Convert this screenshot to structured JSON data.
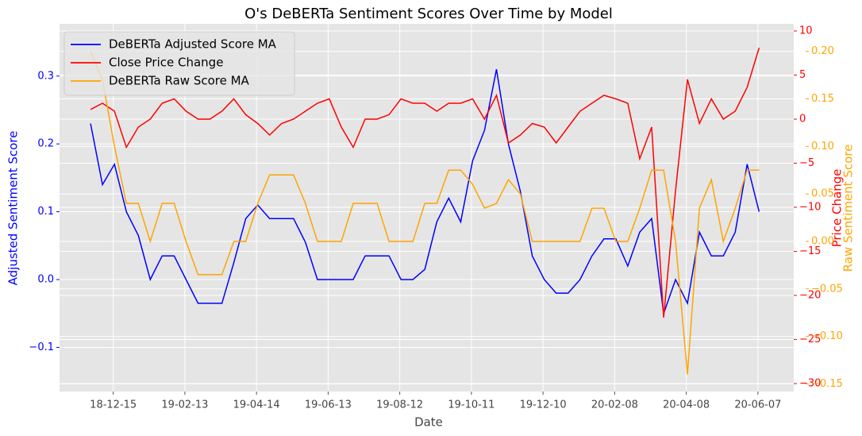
{
  "chart_data": {
    "type": "line",
    "title": "O's DeBERTa Sentiment Scores Over Time by Model",
    "xlabel": "Date",
    "ylabel": "Adjusted Sentiment Score",
    "y2label": "Price Change",
    "y3label": "Raw Sentiment Score",
    "x": [
      "18-11-26",
      "18-12-06",
      "18-12-16",
      "18-12-26",
      "19-01-05",
      "19-01-15",
      "19-01-25",
      "19-02-04",
      "19-02-14",
      "19-02-24",
      "19-03-06",
      "19-03-16",
      "19-03-26",
      "19-04-05",
      "19-04-15",
      "19-04-25",
      "19-05-05",
      "19-05-15",
      "19-05-25",
      "19-06-04",
      "19-06-14",
      "19-06-24",
      "19-07-04",
      "19-07-14",
      "19-07-24",
      "19-08-03",
      "19-08-13",
      "19-08-23",
      "19-09-02",
      "19-09-12",
      "19-09-22",
      "19-10-02",
      "19-10-12",
      "19-10-22",
      "19-11-01",
      "19-11-11",
      "19-11-21",
      "19-12-01",
      "19-12-11",
      "19-12-21",
      "19-12-31",
      "20-01-10",
      "20-01-20",
      "20-01-30",
      "20-02-09",
      "20-02-19",
      "20-02-29",
      "20-03-10",
      "20-03-20",
      "20-03-30",
      "20-04-09",
      "20-04-19",
      "20-04-29",
      "20-05-09",
      "20-05-19",
      "20-05-29",
      "20-06-08"
    ],
    "xlim": [
      "18-10-31",
      "20-07-07"
    ],
    "xticks": [
      "18-12-15",
      "19-02-13",
      "19-04-14",
      "19-06-13",
      "19-08-12",
      "19-10-11",
      "19-12-10",
      "20-02-08",
      "20-04-08",
      "20-06-07"
    ],
    "ylim": [
      -0.165,
      0.377
    ],
    "yticks": [
      {
        "value": -0.1,
        "label": "−0.1"
      },
      {
        "value": 0,
        "label": "0.0"
      },
      0.1,
      0.2,
      0.3
    ],
    "y2lim": [
      -30.9,
      10.81
    ],
    "y2ticks": [
      {
        "value": -30,
        "label": "−30"
      },
      {
        "value": -25,
        "label": "−25"
      },
      {
        "value": -20,
        "label": "−20"
      },
      {
        "value": -15,
        "label": "−15"
      },
      {
        "value": -10,
        "label": "−10"
      },
      {
        "value": -5,
        "label": "−5"
      },
      0,
      5,
      10
    ],
    "y3lim": [
      -0.158,
      0.229
    ],
    "y3ticks": [
      {
        "value": -0.15,
        "label": "−0.15"
      },
      {
        "value": -0.1,
        "label": "−0.10"
      },
      {
        "value": -0.05,
        "label": "−0.05"
      },
      {
        "value": 0,
        "label": "0.00"
      },
      {
        "value": 0.05,
        "label": "0.05"
      },
      {
        "value": 0.1,
        "label": "0.10"
      },
      {
        "value": 0.15,
        "label": "0.15"
      },
      {
        "value": 0.2,
        "label": "0.20"
      }
    ],
    "grid": true,
    "legend": "upper left",
    "series": [
      {
        "name": "DeBERTa Adjusted Score MA",
        "color": "#0000ff",
        "axis": "y",
        "values": [
          0.23,
          0.14,
          0.17,
          0.1,
          0.065,
          0.0,
          0.035,
          0.035,
          0.0,
          -0.035,
          -0.035,
          -0.035,
          0.025,
          0.09,
          0.11,
          0.09,
          0.09,
          0.09,
          0.055,
          0.0,
          0.0,
          0.0,
          0.0,
          0.035,
          0.035,
          0.035,
          0.0,
          0.0,
          0.015,
          0.085,
          0.12,
          0.085,
          0.175,
          0.22,
          0.31,
          0.2,
          0.13,
          0.035,
          0.0,
          -0.02,
          -0.02,
          0.0,
          0.035,
          0.06,
          0.06,
          0.02,
          0.07,
          0.09,
          -0.05,
          0.0,
          -0.035,
          0.07,
          0.035,
          0.035,
          0.07,
          0.17,
          0.1
        ]
      },
      {
        "name": "Close Price Change",
        "color": "#ff0000",
        "axis": "y2",
        "values": [
          1.1,
          1.8,
          0.9,
          -3.2,
          -0.9,
          0,
          1.8,
          2.3,
          0.9,
          0,
          0,
          0.9,
          2.3,
          0.5,
          -0.5,
          -1.8,
          -0.5,
          0,
          0.9,
          1.8,
          2.3,
          -0.9,
          -3.2,
          0,
          0,
          0.5,
          2.3,
          1.8,
          1.8,
          0.9,
          1.8,
          1.8,
          2.3,
          0,
          2.7,
          -2.7,
          -1.8,
          -0.5,
          -0.9,
          -2.7,
          -0.9,
          0.9,
          1.8,
          2.7,
          2.3,
          1.8,
          -4.5,
          -0.9,
          -22.5,
          -8.1,
          4.5,
          -0.5,
          2.3,
          0,
          0.9,
          3.6,
          8.1
        ]
      },
      {
        "name": "DeBERTa Raw Score MA",
        "color": "#ffa500",
        "axis": "y3",
        "values": [
          0.2,
          0.17,
          0.1,
          0.04,
          0.04,
          0.0,
          0.04,
          0.04,
          0.0,
          -0.035,
          -0.035,
          -0.035,
          0.0,
          0.0,
          0.04,
          0.07,
          0.07,
          0.07,
          0.04,
          0.0,
          0.0,
          0.0,
          0.04,
          0.04,
          0.04,
          0.0,
          0.0,
          0.0,
          0.04,
          0.04,
          0.075,
          0.075,
          0.06,
          0.035,
          0.04,
          0.065,
          0.05,
          0.0,
          0.0,
          0.0,
          0.0,
          0.0,
          0.035,
          0.035,
          0.0,
          0.0,
          0.035,
          0.075,
          0.075,
          0.0,
          -0.14,
          0.035,
          0.065,
          0.0,
          0.035,
          0.075,
          0.075
        ]
      }
    ]
  }
}
